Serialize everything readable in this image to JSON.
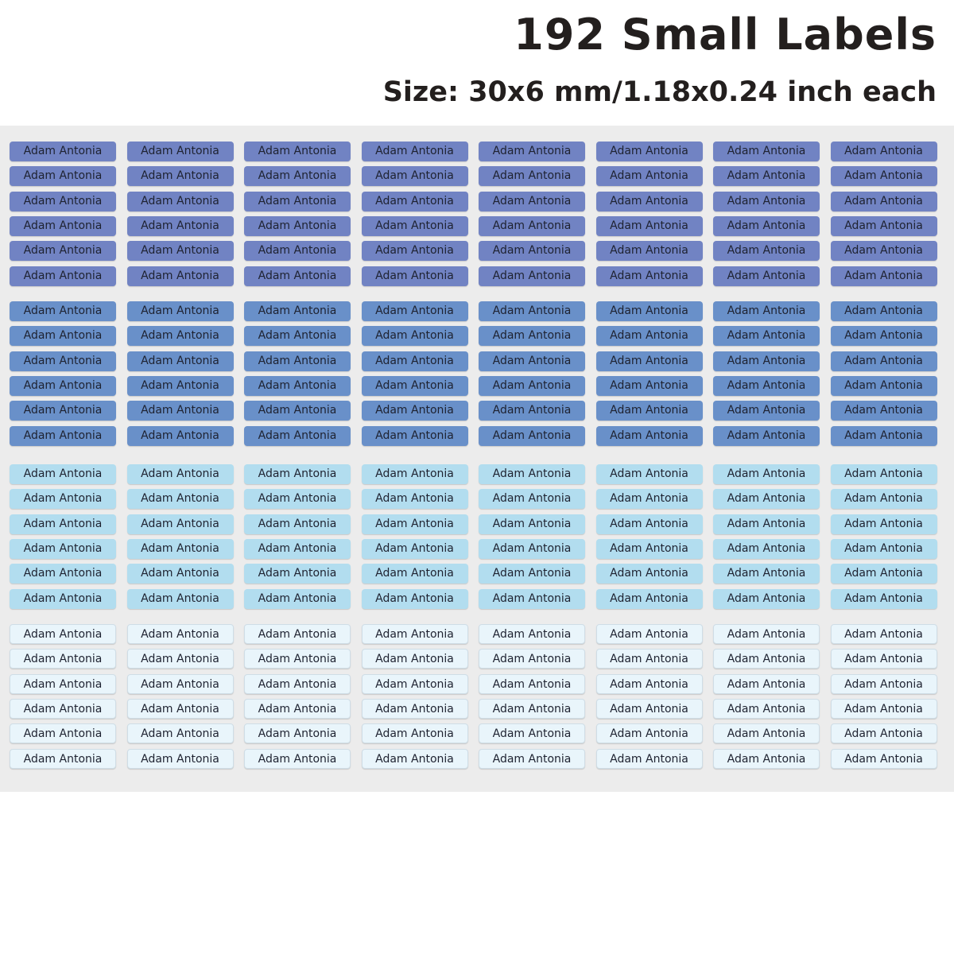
{
  "header": {
    "title": "192 Small Labels",
    "subtitle": "Size: 30x6 mm/1.18x0.24 inch each"
  },
  "sheet": {
    "columns": 8,
    "groups": [
      {
        "color": "#7183c3",
        "text_color": "#1e2230",
        "labels": [
          "Adam Antonia",
          "Adam Antonia",
          "Adam Antonia",
          "Adam Antonia",
          "Adam Antonia",
          "Adam Antonia",
          "Adam Antonia",
          "Adam Antonia",
          "Adam Antonia",
          "Adam Antonia",
          "Adam Antonia",
          "Adam Antonia",
          "Adam Antonia",
          "Adam Antonia",
          "Adam Antonia",
          "Adam Antonia",
          "Adam Antonia",
          "Adam Antonia",
          "Adam Antonia",
          "Adam Antonia",
          "Adam Antonia",
          "Adam Antonia",
          "Adam Antonia",
          "Adam Antonia",
          "Adam Antonia",
          "Adam Antonia",
          "Adam Antonia",
          "Adam Antonia",
          "Adam Antonia",
          "Adam Antonia",
          "Adam Antonia",
          "Adam Antonia",
          "Adam Antonia",
          "Adam Antonia",
          "Adam Antonia",
          "Adam Antonia",
          "Adam Antonia",
          "Adam Antonia",
          "Adam Antonia",
          "Adam Antonia",
          "Adam Antonia",
          "Adam Antonia",
          "Adam Antonia",
          "Adam Antonia",
          "Adam Antonia",
          "Adam Antonia",
          "Adam Antonia",
          "Adam Antonia"
        ]
      },
      {
        "color": "#6990c9",
        "text_color": "#1e2230",
        "labels": [
          "Adam Antonia",
          "Adam Antonia",
          "Adam Antonia",
          "Adam Antonia",
          "Adam Antonia",
          "Adam Antonia",
          "Adam Antonia",
          "Adam Antonia",
          "Adam Antonia",
          "Adam Antonia",
          "Adam Antonia",
          "Adam Antonia",
          "Adam Antonia",
          "Adam Antonia",
          "Adam Antonia",
          "Adam Antonia",
          "Adam Antonia",
          "Adam Antonia",
          "Adam Antonia",
          "Adam Antonia",
          "Adam Antonia",
          "Adam Antonia",
          "Adam Antonia",
          "Adam Antonia",
          "Adam Antonia",
          "Adam Antonia",
          "Adam Antonia",
          "Adam Antonia",
          "Adam Antonia",
          "Adam Antonia",
          "Adam Antonia",
          "Adam Antonia",
          "Adam Antonia",
          "Adam Antonia",
          "Adam Antonia",
          "Adam Antonia",
          "Adam Antonia",
          "Adam Antonia",
          "Adam Antonia",
          "Adam Antonia",
          "Adam Antonia",
          "Adam Antonia",
          "Adam Antonia",
          "Adam Antonia",
          "Adam Antonia",
          "Adam Antonia",
          "Adam Antonia",
          "Adam Antonia"
        ]
      },
      {
        "color": "#b2ddef",
        "text_color": "#1e2230",
        "labels": [
          "Adam Antonia",
          "Adam Antonia",
          "Adam Antonia",
          "Adam Antonia",
          "Adam Antonia",
          "Adam Antonia",
          "Adam Antonia",
          "Adam Antonia",
          "Adam Antonia",
          "Adam Antonia",
          "Adam Antonia",
          "Adam Antonia",
          "Adam Antonia",
          "Adam Antonia",
          "Adam Antonia",
          "Adam Antonia",
          "Adam Antonia",
          "Adam Antonia",
          "Adam Antonia",
          "Adam Antonia",
          "Adam Antonia",
          "Adam Antonia",
          "Adam Antonia",
          "Adam Antonia",
          "Adam Antonia",
          "Adam Antonia",
          "Adam Antonia",
          "Adam Antonia",
          "Adam Antonia",
          "Adam Antonia",
          "Adam Antonia",
          "Adam Antonia",
          "Adam Antonia",
          "Adam Antonia",
          "Adam Antonia",
          "Adam Antonia",
          "Adam Antonia",
          "Adam Antonia",
          "Adam Antonia",
          "Adam Antonia",
          "Adam Antonia",
          "Adam Antonia",
          "Adam Antonia",
          "Adam Antonia",
          "Adam Antonia",
          "Adam Antonia",
          "Adam Antonia",
          "Adam Antonia"
        ]
      },
      {
        "color": "#e9f5fb",
        "text_color": "#1e2230",
        "labels": [
          "Adam Antonia",
          "Adam Antonia",
          "Adam Antonia",
          "Adam Antonia",
          "Adam Antonia",
          "Adam Antonia",
          "Adam Antonia",
          "Adam Antonia",
          "Adam Antonia",
          "Adam Antonia",
          "Adam Antonia",
          "Adam Antonia",
          "Adam Antonia",
          "Adam Antonia",
          "Adam Antonia",
          "Adam Antonia",
          "Adam Antonia",
          "Adam Antonia",
          "Adam Antonia",
          "Adam Antonia",
          "Adam Antonia",
          "Adam Antonia",
          "Adam Antonia",
          "Adam Antonia",
          "Adam Antonia",
          "Adam Antonia",
          "Adam Antonia",
          "Adam Antonia",
          "Adam Antonia",
          "Adam Antonia",
          "Adam Antonia",
          "Adam Antonia",
          "Adam Antonia",
          "Adam Antonia",
          "Adam Antonia",
          "Adam Antonia",
          "Adam Antonia",
          "Adam Antonia",
          "Adam Antonia",
          "Adam Antonia",
          "Adam Antonia",
          "Adam Antonia",
          "Adam Antonia",
          "Adam Antonia",
          "Adam Antonia",
          "Adam Antonia",
          "Adam Antonia",
          "Adam Antonia"
        ]
      }
    ]
  }
}
